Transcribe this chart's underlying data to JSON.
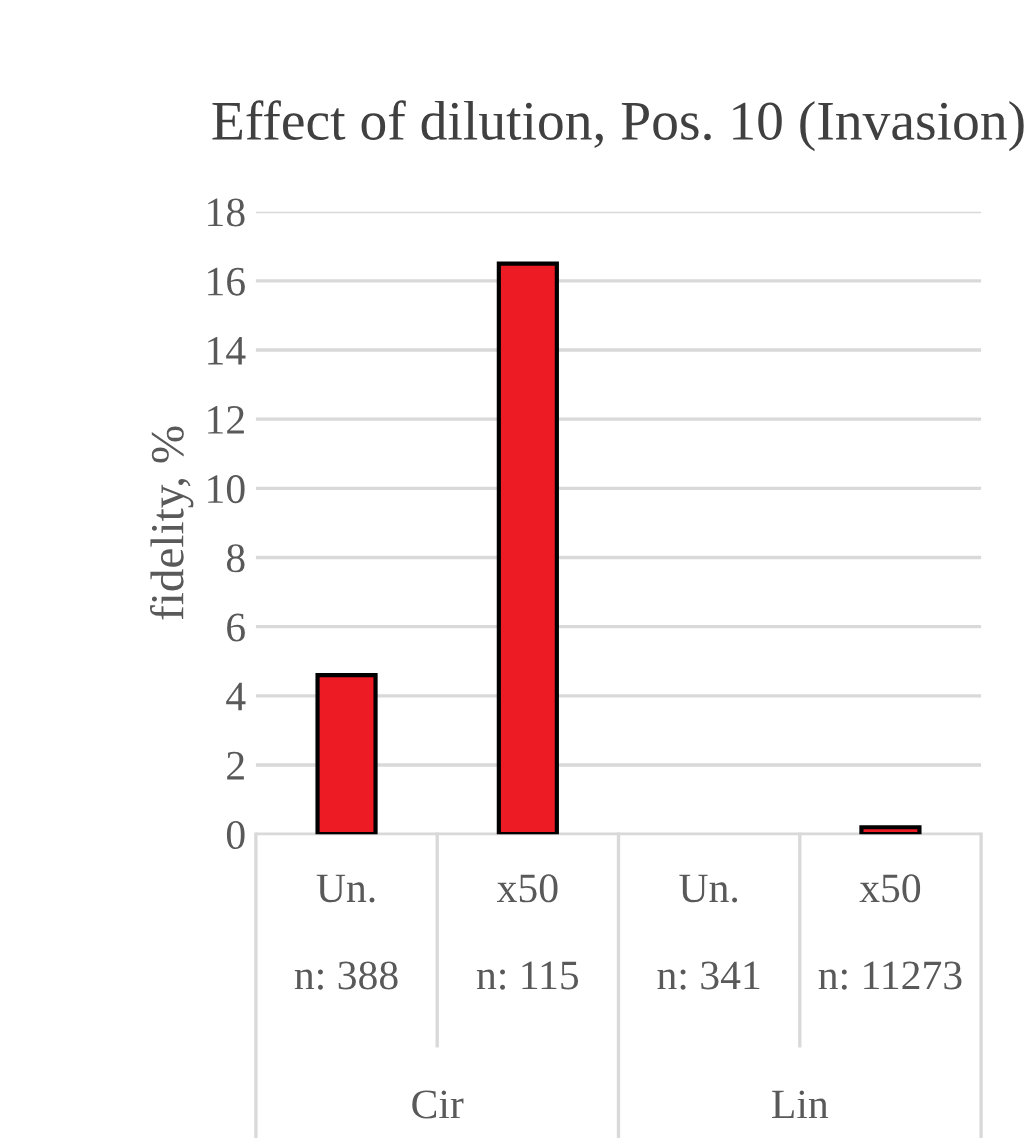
{
  "chart_data": {
    "type": "bar",
    "title": "Effect of dilution, Pos. 10 (Invasion)",
    "ylabel": "fidelity, %",
    "categories": [
      "Un.\n\nn: 388",
      "x50\n\nn: 115",
      "Un.\n\nn: 341",
      "x50\n\nn: 11273"
    ],
    "values": [
      4.6,
      16.5,
      null,
      0.2
    ],
    "color": "#ed1c24",
    "ylim": [
      0,
      18
    ],
    "yticks": [
      0,
      2,
      4,
      6,
      8,
      10,
      12,
      14,
      16,
      18
    ],
    "grid": "y",
    "annotations": [
      "Cir",
      "Lin"
    ]
  }
}
